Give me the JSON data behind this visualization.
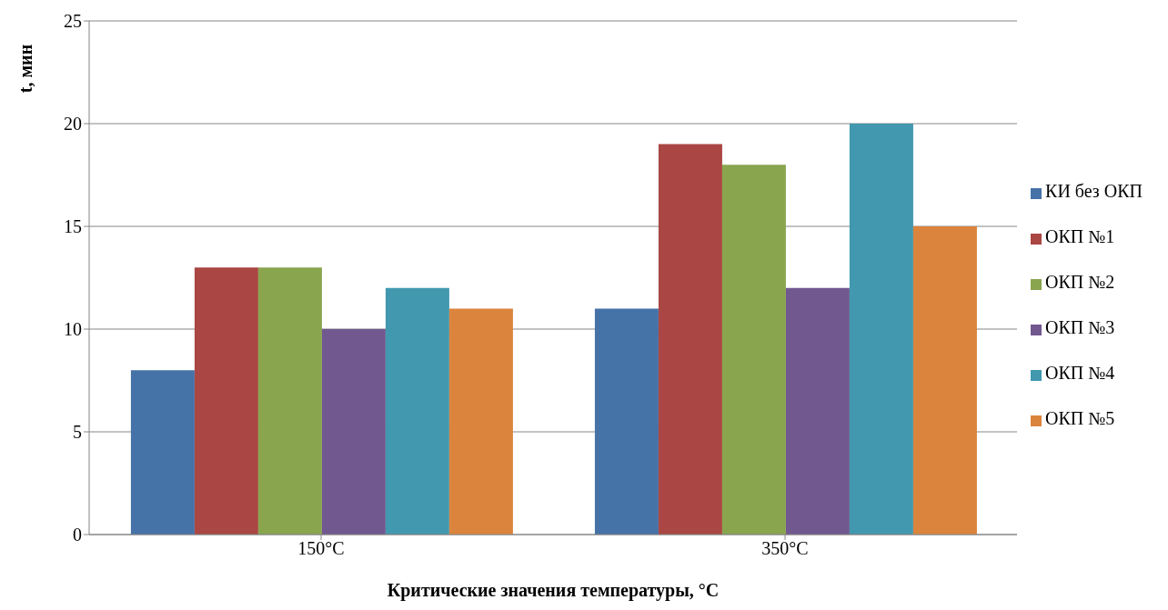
{
  "chart_data": {
    "type": "bar",
    "xlabel": "Критические значения температуры, °C",
    "ylabel": "t, мин",
    "categories": [
      "150°C",
      "350°C"
    ],
    "series": [
      {
        "name": "КИ без ОКП",
        "color": "#4572a7",
        "values": [
          8,
          11
        ]
      },
      {
        "name": "ОКП №1",
        "color": "#aa4643",
        "values": [
          13,
          19
        ]
      },
      {
        "name": "ОКП №2",
        "color": "#89a54e",
        "values": [
          13,
          18
        ]
      },
      {
        "name": "ОКП №3",
        "color": "#71588f",
        "values": [
          10,
          12
        ]
      },
      {
        "name": "ОКП №4",
        "color": "#4198af",
        "values": [
          12,
          20
        ]
      },
      {
        "name": "ОКП №5",
        "color": "#db843d",
        "values": [
          11,
          15
        ]
      }
    ],
    "ylim": [
      0,
      25
    ],
    "yticks": [
      0,
      5,
      10,
      15,
      20,
      25
    ],
    "grid": "y",
    "legend": "right"
  }
}
